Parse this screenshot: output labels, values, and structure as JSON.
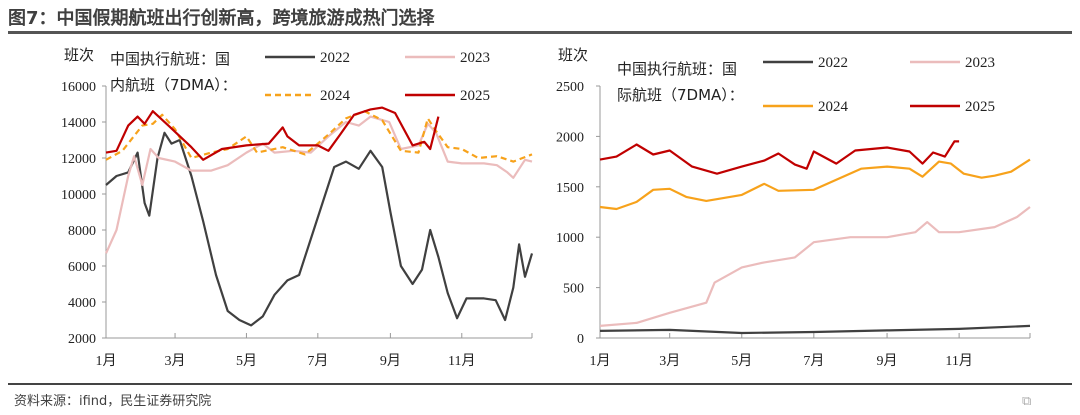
{
  "title": "图7：中国假期航班出行创新高，跨境旅游成热门选择",
  "source": "资料来源：ifind，民生证券研究院",
  "watermark": "格隆汇",
  "chart_data": [
    {
      "type": "line",
      "title_lines": [
        "中国执行航班：国",
        "内航班（7DMA）："
      ],
      "ylabel": "班次",
      "ylim": [
        2000,
        16000
      ],
      "yticks": [
        2000,
        4000,
        6000,
        8000,
        10000,
        12000,
        14000,
        16000
      ],
      "xticks": [
        {
          "date": "01-01",
          "label": "1月"
        },
        {
          "date": "03-01",
          "label": "3月"
        },
        {
          "date": "05-01",
          "label": "5月"
        },
        {
          "date": "07-01",
          "label": "7月"
        },
        {
          "date": "09-01",
          "label": "9月"
        },
        {
          "date": "11-01",
          "label": "11月"
        }
      ],
      "series": [
        {
          "name": "2022",
          "color": "#404040",
          "dash": false,
          "points": [
            [
              "01-01",
              10500
            ],
            [
              "01-10",
              11000
            ],
            [
              "01-20",
              11200
            ],
            [
              "01-28",
              12300
            ],
            [
              "02-03",
              9500
            ],
            [
              "02-07",
              8800
            ],
            [
              "02-14",
              12000
            ],
            [
              "02-20",
              13400
            ],
            [
              "02-26",
              12800
            ],
            [
              "03-05",
              13000
            ],
            [
              "03-15",
              11000
            ],
            [
              "03-25",
              8500
            ],
            [
              "04-05",
              5500
            ],
            [
              "04-15",
              3500
            ],
            [
              "04-25",
              3000
            ],
            [
              "05-05",
              2700
            ],
            [
              "05-15",
              3200
            ],
            [
              "05-25",
              4400
            ],
            [
              "06-05",
              5200
            ],
            [
              "06-15",
              5500
            ],
            [
              "06-25",
              7500
            ],
            [
              "07-05",
              9500
            ],
            [
              "07-15",
              11500
            ],
            [
              "07-25",
              11800
            ],
            [
              "08-05",
              11400
            ],
            [
              "08-15",
              12400
            ],
            [
              "08-25",
              11500
            ],
            [
              "09-01",
              9000
            ],
            [
              "09-10",
              6000
            ],
            [
              "09-20",
              5000
            ],
            [
              "09-28",
              5800
            ],
            [
              "10-05",
              8000
            ],
            [
              "10-12",
              6500
            ],
            [
              "10-20",
              4500
            ],
            [
              "10-28",
              3100
            ],
            [
              "11-05",
              4200
            ],
            [
              "11-20",
              4200
            ],
            [
              "11-30",
              4100
            ],
            [
              "12-08",
              3000
            ],
            [
              "12-15",
              4800
            ],
            [
              "12-20",
              7200
            ],
            [
              "12-25",
              5400
            ],
            [
              "12-31",
              6700
            ]
          ]
        },
        {
          "name": "2023",
          "color": "#ebbcbc",
          "dash": false,
          "points": [
            [
              "01-01",
              6700
            ],
            [
              "01-10",
              8000
            ],
            [
              "01-20",
              11000
            ],
            [
              "01-25",
              12100
            ],
            [
              "02-01",
              10500
            ],
            [
              "02-08",
              12500
            ],
            [
              "02-15",
              12000
            ],
            [
              "03-01",
              11800
            ],
            [
              "03-15",
              11300
            ],
            [
              "04-01",
              11300
            ],
            [
              "04-15",
              11600
            ],
            [
              "05-01",
              12300
            ],
            [
              "05-15",
              12800
            ],
            [
              "05-25",
              12300
            ],
            [
              "06-10",
              12400
            ],
            [
              "06-25",
              12300
            ],
            [
              "07-10",
              13200
            ],
            [
              "07-25",
              14000
            ],
            [
              "08-05",
              13800
            ],
            [
              "08-15",
              14300
            ],
            [
              "08-31",
              14000
            ],
            [
              "09-10",
              12500
            ],
            [
              "09-25",
              12700
            ],
            [
              "10-03",
              13900
            ],
            [
              "10-10",
              13400
            ],
            [
              "10-20",
              11800
            ],
            [
              "11-01",
              11700
            ],
            [
              "11-20",
              11700
            ],
            [
              "12-01",
              11600
            ],
            [
              "12-10",
              11200
            ],
            [
              "12-15",
              10900
            ],
            [
              "12-25",
              11900
            ],
            [
              "12-31",
              11800
            ]
          ]
        },
        {
          "name": "2024",
          "color": "#f7a21b",
          "dash": true,
          "points": [
            [
              "01-01",
              11900
            ],
            [
              "01-15",
              12400
            ],
            [
              "02-01",
              13800
            ],
            [
              "02-10",
              13900
            ],
            [
              "02-18",
              14400
            ],
            [
              "03-01",
              13600
            ],
            [
              "03-15",
              12000
            ],
            [
              "04-01",
              12300
            ],
            [
              "04-15",
              12500
            ],
            [
              "05-01",
              13200
            ],
            [
              "05-10",
              12300
            ],
            [
              "06-01",
              12600
            ],
            [
              "06-20",
              12200
            ],
            [
              "07-10",
              13300
            ],
            [
              "07-25",
              14200
            ],
            [
              "08-10",
              14600
            ],
            [
              "08-25",
              14100
            ],
            [
              "09-10",
              12400
            ],
            [
              "09-25",
              12300
            ],
            [
              "10-03",
              14200
            ],
            [
              "10-10",
              13500
            ],
            [
              "10-20",
              12600
            ],
            [
              "11-01",
              12500
            ],
            [
              "11-15",
              12000
            ],
            [
              "12-01",
              12100
            ],
            [
              "12-15",
              11800
            ],
            [
              "12-31",
              12200
            ]
          ]
        },
        {
          "name": "2025",
          "color": "#c00000",
          "dash": false,
          "points": [
            [
              "01-01",
              12300
            ],
            [
              "01-10",
              12400
            ],
            [
              "01-20",
              13800
            ],
            [
              "01-28",
              14300
            ],
            [
              "02-03",
              13900
            ],
            [
              "02-10",
              14600
            ],
            [
              "02-25",
              13700
            ],
            [
              "03-15",
              12600
            ],
            [
              "03-25",
              11900
            ],
            [
              "04-10",
              12500
            ],
            [
              "05-01",
              12700
            ],
            [
              "05-20",
              12800
            ],
            [
              "06-01",
              13700
            ],
            [
              "06-05",
              13200
            ],
            [
              "06-15",
              12700
            ],
            [
              "07-01",
              12700
            ],
            [
              "07-10",
              12400
            ],
            [
              "07-20",
              13300
            ],
            [
              "08-01",
              14400
            ],
            [
              "08-15",
              14700
            ],
            [
              "08-25",
              14800
            ],
            [
              "09-05",
              14500
            ],
            [
              "09-20",
              12700
            ],
            [
              "09-30",
              12900
            ],
            [
              "10-05",
              12500
            ],
            [
              "10-12",
              14300
            ]
          ]
        }
      ]
    },
    {
      "type": "line",
      "title_lines": [
        "中国执行航班：国",
        "际航班（7DMA）："
      ],
      "ylabel": "班次",
      "ylim": [
        0,
        2500
      ],
      "yticks": [
        0,
        500,
        1000,
        1500,
        2000,
        2500
      ],
      "xticks": [
        {
          "date": "01-01",
          "label": "1月"
        },
        {
          "date": "03-01",
          "label": "3月"
        },
        {
          "date": "05-01",
          "label": "5月"
        },
        {
          "date": "07-01",
          "label": "7月"
        },
        {
          "date": "09-01",
          "label": "9月"
        },
        {
          "date": "11-01",
          "label": "11月"
        }
      ],
      "series": [
        {
          "name": "2022",
          "color": "#404040",
          "dash": false,
          "points": [
            [
              "01-01",
              70
            ],
            [
              "03-01",
              80
            ],
            [
              "05-01",
              50
            ],
            [
              "07-01",
              60
            ],
            [
              "09-01",
              75
            ],
            [
              "11-01",
              90
            ],
            [
              "12-31",
              120
            ]
          ]
        },
        {
          "name": "2023",
          "color": "#ebbcbc",
          "dash": false,
          "points": [
            [
              "01-01",
              120
            ],
            [
              "02-01",
              150
            ],
            [
              "03-01",
              250
            ],
            [
              "04-01",
              350
            ],
            [
              "04-08",
              550
            ],
            [
              "05-01",
              700
            ],
            [
              "05-20",
              750
            ],
            [
              "06-15",
              800
            ],
            [
              "07-01",
              950
            ],
            [
              "08-01",
              1000
            ],
            [
              "09-01",
              1000
            ],
            [
              "09-25",
              1050
            ],
            [
              "10-05",
              1150
            ],
            [
              "10-15",
              1050
            ],
            [
              "11-01",
              1050
            ],
            [
              "12-01",
              1100
            ],
            [
              "12-20",
              1200
            ],
            [
              "12-31",
              1300
            ]
          ]
        },
        {
          "name": "2024",
          "color": "#f7a21b",
          "dash": false,
          "points": [
            [
              "01-01",
              1300
            ],
            [
              "01-15",
              1280
            ],
            [
              "02-01",
              1350
            ],
            [
              "02-15",
              1470
            ],
            [
              "03-01",
              1480
            ],
            [
              "03-15",
              1400
            ],
            [
              "04-01",
              1360
            ],
            [
              "05-01",
              1420
            ],
            [
              "05-20",
              1530
            ],
            [
              "06-01",
              1460
            ],
            [
              "07-01",
              1470
            ],
            [
              "07-20",
              1570
            ],
            [
              "08-10",
              1680
            ],
            [
              "09-01",
              1700
            ],
            [
              "09-20",
              1680
            ],
            [
              "10-01",
              1600
            ],
            [
              "10-15",
              1750
            ],
            [
              "10-25",
              1730
            ],
            [
              "11-05",
              1630
            ],
            [
              "11-20",
              1590
            ],
            [
              "12-01",
              1610
            ],
            [
              "12-15",
              1650
            ],
            [
              "12-31",
              1770
            ]
          ]
        },
        {
          "name": "2025",
          "color": "#c00000",
          "dash": false,
          "points": [
            [
              "01-01",
              1770
            ],
            [
              "01-15",
              1800
            ],
            [
              "02-01",
              1920
            ],
            [
              "02-15",
              1820
            ],
            [
              "03-01",
              1860
            ],
            [
              "03-20",
              1700
            ],
            [
              "04-10",
              1630
            ],
            [
              "05-01",
              1700
            ],
            [
              "05-20",
              1760
            ],
            [
              "06-01",
              1830
            ],
            [
              "06-15",
              1720
            ],
            [
              "06-25",
              1680
            ],
            [
              "07-01",
              1850
            ],
            [
              "07-20",
              1730
            ],
            [
              "08-05",
              1860
            ],
            [
              "09-01",
              1890
            ],
            [
              "09-20",
              1850
            ],
            [
              "10-01",
              1730
            ],
            [
              "10-10",
              1840
            ],
            [
              "10-20",
              1800
            ],
            [
              "10-28",
              1950
            ],
            [
              "11-01",
              1950
            ]
          ]
        }
      ]
    }
  ]
}
